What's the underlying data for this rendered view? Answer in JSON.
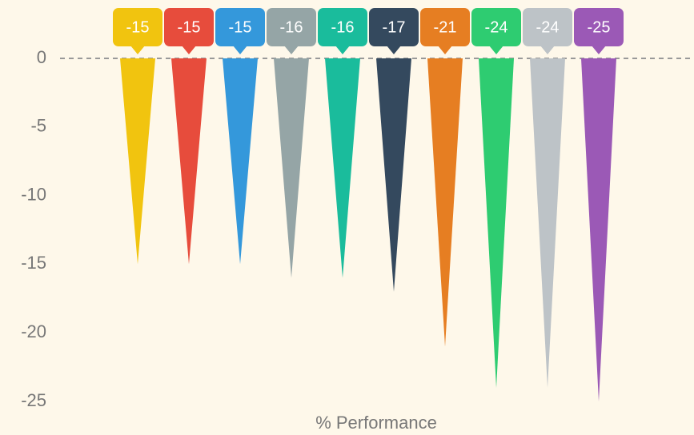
{
  "chart_data": {
    "type": "spike",
    "x_label": "% Performance",
    "values": [
      -15,
      -15,
      -15,
      -16,
      -16,
      -17,
      -21,
      -24,
      -24,
      -25
    ],
    "colors": [
      "#f1c40f",
      "#e74c3c",
      "#3498db",
      "#95a5a6",
      "#1abc9c",
      "#34495e",
      "#e67e22",
      "#2ecc71",
      "#bdc3c7",
      "#9b59b6"
    ],
    "ylim": [
      -25,
      0
    ],
    "yticks": [
      0,
      -5,
      -10,
      -15,
      -20,
      -25
    ],
    "grid": false
  }
}
